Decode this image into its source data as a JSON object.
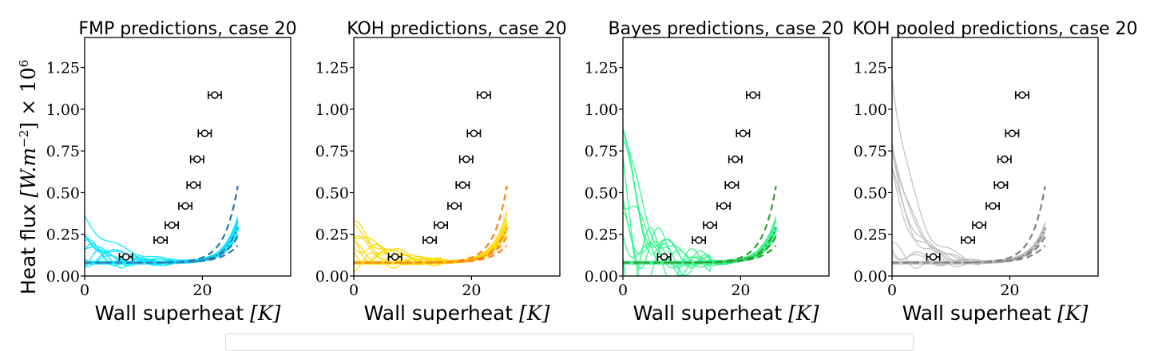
{
  "figure": {
    "ylabel_prefix": "Heat flux ",
    "ylabel_unit": "[W.m",
    "ylabel_exp": "−2",
    "ylabel_mid": "] × 10",
    "ylabel_exp2": "6",
    "xlabel_prefix": "Wall superheat ",
    "xlabel_unit": "[K]"
  },
  "chart_data": [
    {
      "type": "line",
      "title": "FMP predictions, case 20",
      "color_main": "#00e5ff",
      "color_dash": "#1f77b4",
      "color_dashdot": "#4a7aa8",
      "xlim": [
        0,
        35
      ],
      "ylim": [
        0,
        1.43
      ],
      "xticks": [
        "0",
        "20"
      ],
      "yticks": [
        "0.00",
        "0.25",
        "0.50",
        "0.75",
        "1.00",
        "1.25"
      ],
      "observations": {
        "x": [
          7.0,
          12.9,
          14.8,
          17.1,
          18.5,
          19.1,
          20.4,
          22.1
        ],
        "y": [
          0.115,
          0.215,
          0.305,
          0.42,
          0.545,
          0.7,
          0.855,
          1.085
        ],
        "xerr": 1.1
      }
    },
    {
      "type": "line",
      "title": "KOH predictions, case 20",
      "color_main": "#ffd700",
      "color_dash": "#ff7f0e",
      "color_dashdot": "#e8892a",
      "xlim": [
        0,
        35
      ],
      "ylim": [
        0,
        1.43
      ],
      "xticks": [
        "0",
        "20"
      ],
      "yticks": [
        "0.00",
        "0.25",
        "0.50",
        "0.75",
        "1.00",
        "1.25"
      ],
      "observations": {
        "x": [
          7.0,
          12.9,
          14.8,
          17.1,
          18.5,
          19.1,
          20.4,
          22.1
        ],
        "y": [
          0.115,
          0.215,
          0.305,
          0.42,
          0.545,
          0.7,
          0.855,
          1.085
        ],
        "xerr": 1.1
      }
    },
    {
      "type": "line",
      "title": "Bayes predictions, case 20",
      "color_main": "#2ef58a",
      "color_dash": "#2ca02c",
      "color_dashdot": "#3a9a3a",
      "xlim": [
        0,
        35
      ],
      "ylim": [
        0,
        1.43
      ],
      "xticks": [
        "0",
        "20"
      ],
      "yticks": [
        "0.00",
        "0.25",
        "0.50",
        "0.75",
        "1.00",
        "1.25"
      ],
      "observations": {
        "x": [
          7.0,
          12.9,
          14.8,
          17.1,
          18.5,
          19.1,
          20.4,
          22.1
        ],
        "y": [
          0.115,
          0.215,
          0.305,
          0.42,
          0.545,
          0.7,
          0.855,
          1.085
        ],
        "xerr": 1.1
      }
    },
    {
      "type": "line",
      "title": "KOH pooled predictions, case 20",
      "color_main": "#c0c0c0",
      "color_dash": "#7f7f7f",
      "color_dashdot": "#8a8a8a",
      "xlim": [
        0,
        35
      ],
      "ylim": [
        0,
        1.43
      ],
      "xticks": [
        "0",
        "20"
      ],
      "yticks": [
        "0.00",
        "0.25",
        "0.50",
        "0.75",
        "1.00",
        "1.25"
      ],
      "observations": {
        "x": [
          7.0,
          12.9,
          14.8,
          17.1,
          18.5,
          19.1,
          20.4,
          22.1
        ],
        "y": [
          0.115,
          0.215,
          0.305,
          0.42,
          0.545,
          0.7,
          0.855,
          1.085
        ],
        "xerr": 1.1
      }
    }
  ]
}
